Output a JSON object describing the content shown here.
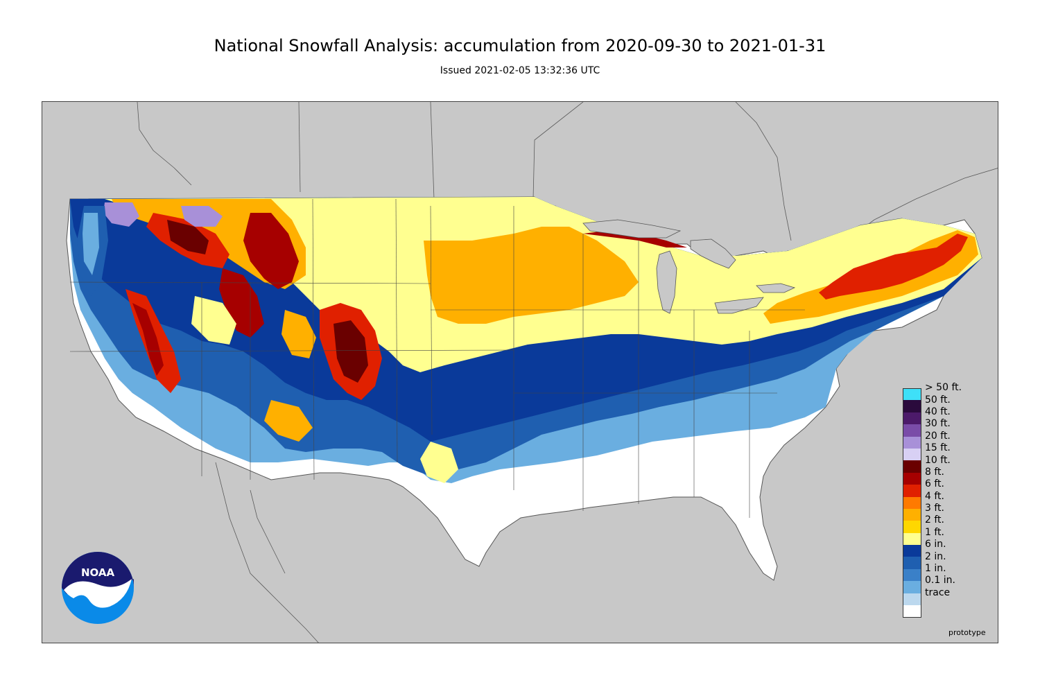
{
  "title": "National Snowfall Analysis: accumulation from 2020-09-30 to 2021-01-31",
  "subtitle": "Issued 2021-02-05 13:32:36 UTC",
  "watermark": "prototype",
  "logo": {
    "text": "NOAA",
    "colors": {
      "top": "#1a1a6e",
      "bottom": "#0a8ae8",
      "wave": "#ffffff"
    }
  },
  "map": {
    "background_color": "#c8c8c8",
    "land_outline_color": "#444444",
    "icon": "united-states-map"
  },
  "legend": {
    "items": [
      {
        "label": "> 50 ft.",
        "color": "#3ee0f8"
      },
      {
        "label": "50 ft.",
        "color": "#2a0a3c"
      },
      {
        "label": "40 ft.",
        "color": "#4c1a6a"
      },
      {
        "label": "30 ft.",
        "color": "#7a4ca8"
      },
      {
        "label": "20 ft.",
        "color": "#a890d8"
      },
      {
        "label": "15 ft.",
        "color": "#d8d0f4"
      },
      {
        "label": "10 ft.",
        "color": "#6a0000"
      },
      {
        "label": "8 ft.",
        "color": "#a60000"
      },
      {
        "label": "6 ft.",
        "color": "#e02000"
      },
      {
        "label": "4 ft.",
        "color": "#ff7a00"
      },
      {
        "label": "3 ft.",
        "color": "#ffb000"
      },
      {
        "label": "2 ft.",
        "color": "#ffd700"
      },
      {
        "label": "1 ft.",
        "color": "#ffff90"
      },
      {
        "label": "6 in.",
        "color": "#0a3a9a"
      },
      {
        "label": "2 in.",
        "color": "#1f5fb0"
      },
      {
        "label": "1 in.",
        "color": "#3a80c8"
      },
      {
        "label": "0.1 in.",
        "color": "#6aaee0"
      },
      {
        "label": "trace",
        "color": "#bcd8ee"
      },
      {
        "label": "",
        "color": "#ffffff"
      }
    ]
  }
}
